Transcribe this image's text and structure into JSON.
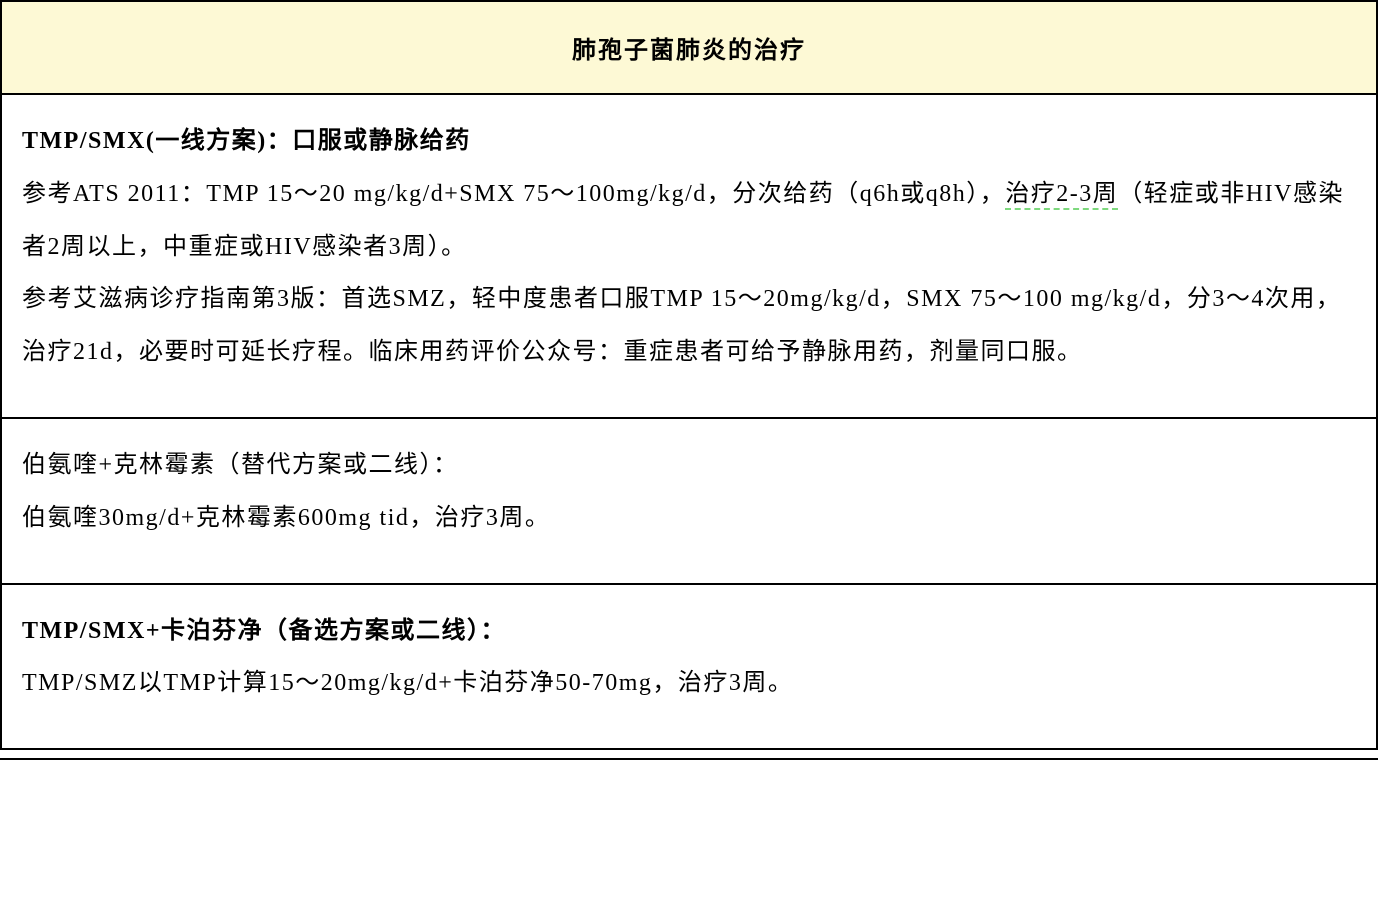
{
  "table": {
    "title": "肺孢子菌肺炎的治疗",
    "header_bg_color": "#fdf9d5",
    "header_font_weight": "bold",
    "border_color": "#000000",
    "rows": [
      {
        "heading": "TMP/SMX(一线方案)：口服或静脉给药",
        "heading_bold": true,
        "body_parts": [
          {
            "text": "参考ATS 2011：TMP 15～20 mg/kg/d+SMX 75～100mg/kg/d，分次给药（q6h或q8h），",
            "underline": false
          },
          {
            "text": "治疗2-3周",
            "underline": true
          },
          {
            "text": "（轻症或非HIV感染者2周以上，中重症或HIV感染者3周）。",
            "underline": false
          }
        ],
        "body2": "参考艾滋病诊疗指南第3版：首选SMZ，轻中度患者口服TMP 15～20mg/kg/d，SMX 75～100 mg/kg/d，分3～4次用，治疗21d，必要时可延长疗程。临床用药评价公众号：重症患者可给予静脉用药，剂量同口服。"
      },
      {
        "heading": "伯氨喹+克林霉素（替代方案或二线）：",
        "heading_bold": false,
        "body": "伯氨喹30mg/d+克林霉素600mg tid，治疗3周。"
      },
      {
        "heading": "TMP/SMX+卡泊芬净（备选方案或二线）：",
        "heading_bold": true,
        "body": "TMP/SMZ以TMP计算15～20mg/kg/d+卡泊芬净50-70mg，治疗3周。"
      }
    ],
    "underline_color": "#7dd87d",
    "font_size_title": 24,
    "font_size_body": 24,
    "line_height": 2.2
  }
}
